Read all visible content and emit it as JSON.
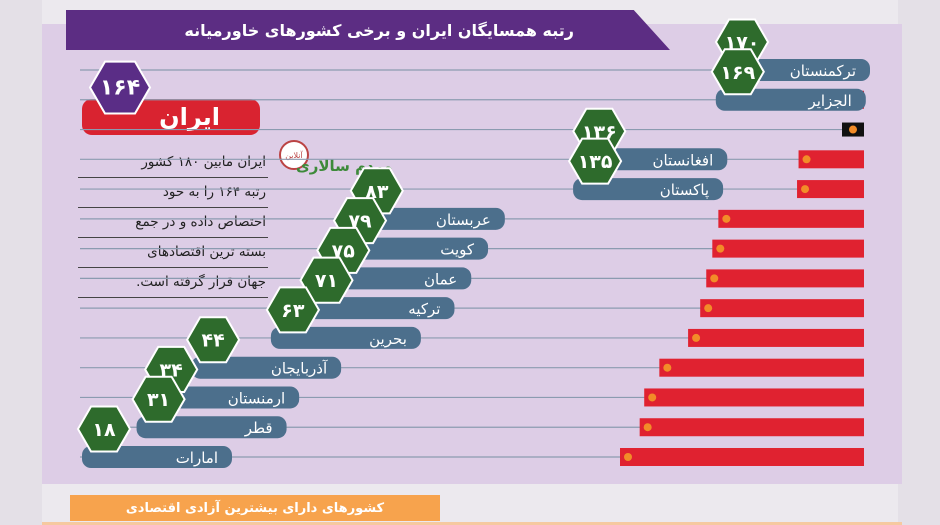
{
  "title": "رتبه همسایگان ایران و برخی کشورهای خاورمیانه",
  "iran": {
    "name": "ایران",
    "rank": "۱۶۴"
  },
  "description": [
    "ایران مابین ۱۸۰ کشور",
    "رتبه ۱۶۴ را به خود",
    "اختصاص داده و در جمع",
    "بسته ترین اقتصادهای",
    "جهان قرار گرفته است."
  ],
  "logo": {
    "text": "مردم سالاری",
    "badge": "آنلاین"
  },
  "bottom_bar": "کشورهای دارای بیشترین آزادی اقتصادی",
  "colors": {
    "bar": "#e02230",
    "label": "#4c6f8c",
    "hex": "#2e6b2c",
    "iran": "#d92330",
    "iran_hex": "#5a2d86",
    "panel": "#ddcde6"
  },
  "chart_data": {
    "type": "bar",
    "orientation": "horizontal",
    "title": "رتبه همسایگان ایران و برخی کشورهای خاورمیانه",
    "categories": [
      "ترکمنستان",
      "الجزایر",
      "ایران",
      "افغانستان",
      "پاکستان",
      "عربستان",
      "کویت",
      "عمان",
      "ترکیه",
      "بحرین",
      "آذربایجان",
      "ارمنستان",
      "قطر",
      "امارات"
    ],
    "values": [
      170,
      169,
      164,
      136,
      135,
      83,
      79,
      75,
      71,
      63,
      44,
      34,
      31,
      18
    ],
    "value_labels": [
      "۱۷۰",
      "۱۶۹",
      "۱۶۴",
      "۱۳۶",
      "۱۳۵",
      "۸۳",
      "۷۹",
      "۷۵",
      "۷۱",
      "۶۳",
      "۴۴",
      "۳۴",
      "۳۱",
      "۱۸"
    ],
    "total_countries": 180
  }
}
